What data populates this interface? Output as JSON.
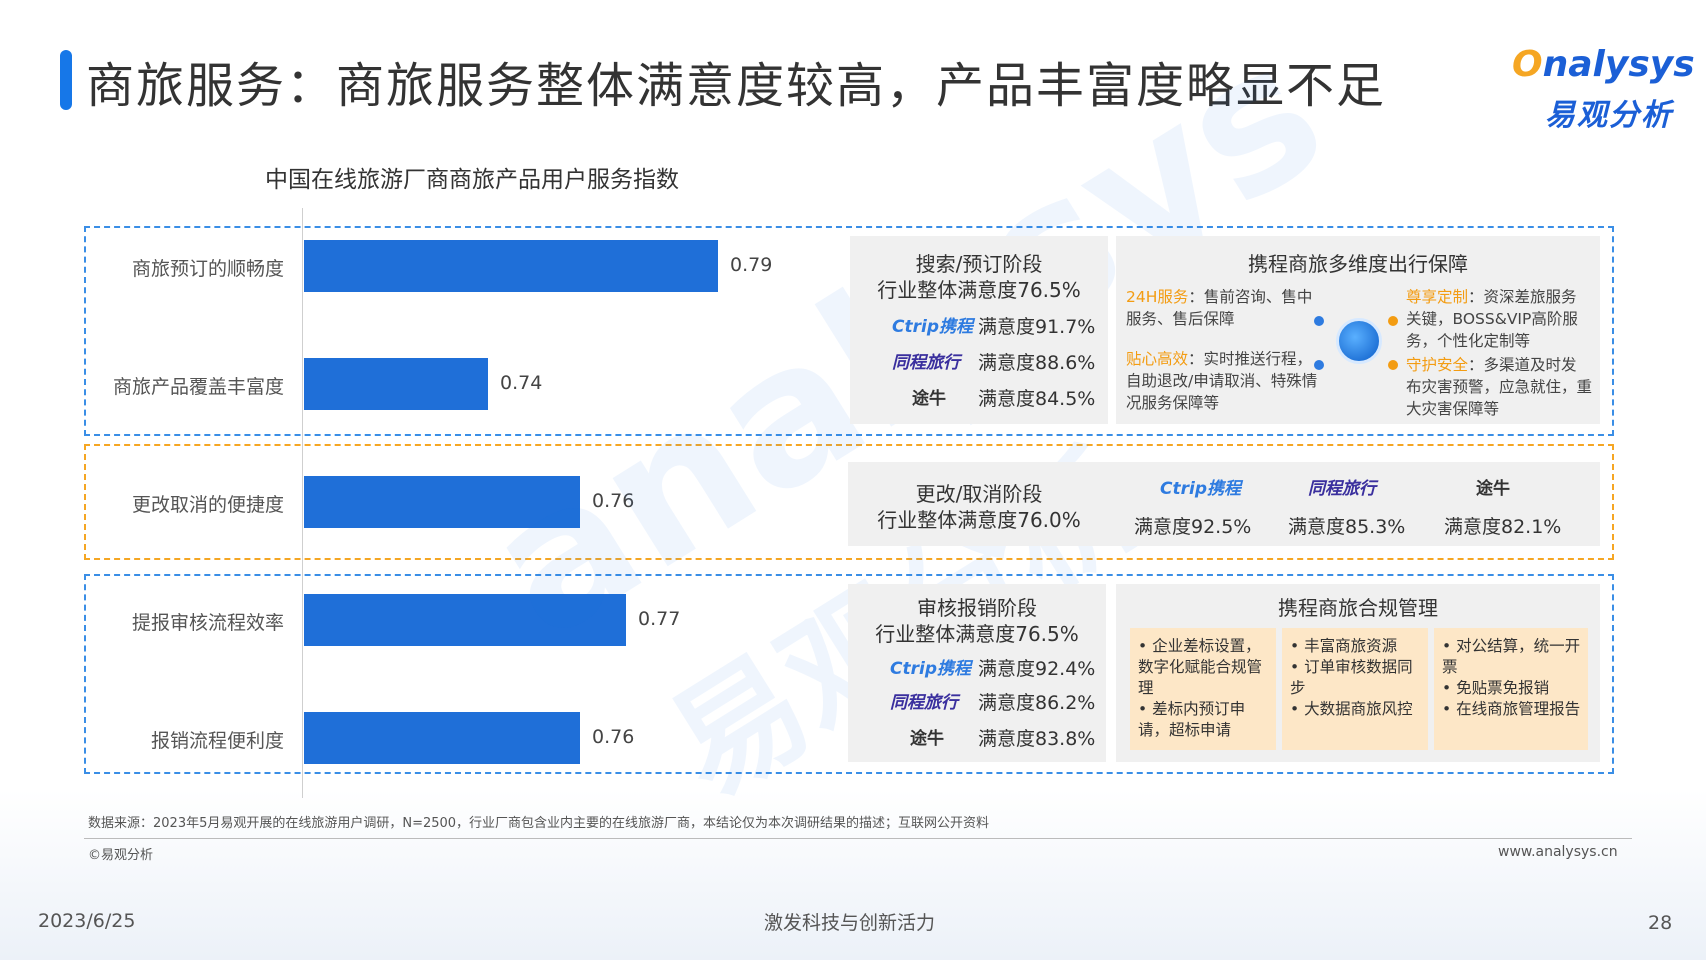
{
  "header": {
    "title": "商旅服务：商旅服务整体满意度较高，产品丰富度略显不足",
    "logo_en_o": "O",
    "logo_en_rest": "nalysys",
    "logo_cn": "易观分析"
  },
  "watermark": {
    "en": "analysys",
    "cn": "易观分析"
  },
  "chart_data": {
    "type": "bar",
    "orientation": "horizontal",
    "title": "中国在线旅游厂商商旅产品用户服务指数",
    "categories": [
      "商旅预订的顺畅度",
      "商旅产品覆盖丰富度",
      "更改取消的便捷度",
      "提报审核流程效率",
      "报销流程便利度"
    ],
    "values": [
      0.79,
      0.74,
      0.76,
      0.77,
      0.76
    ],
    "value_labels": [
      "0.79",
      "0.74",
      "0.76",
      "0.77",
      "0.76"
    ],
    "xlabel": "",
    "ylabel": "",
    "xlim": [
      0.7,
      0.8
    ],
    "color": "#1f6fd8"
  },
  "panel_search": {
    "title_1": "搜索/预订阶段",
    "title_2": "行业整体满意度76.5%",
    "rows": [
      {
        "brand": "Ctrip携程",
        "sat": "满意度91.7%"
      },
      {
        "brand": "同程旅行",
        "sat": "满意度88.6%"
      },
      {
        "brand": "途牛",
        "sat": "满意度84.5%"
      }
    ]
  },
  "panel_guarantee": {
    "title": "携程商旅多维度出行保障",
    "items": [
      {
        "label": "24H服务",
        "text": "：售前咨询、售中服务、售后保障"
      },
      {
        "label": "贴心高效",
        "text": "：实时推送行程，自助退改/申请取消、特殊情况服务保障等"
      },
      {
        "label": "尊享定制",
        "text": "：资深差旅服务关键，BOSS&VIP高阶服务，个性化定制等"
      },
      {
        "label": "守护安全",
        "text": "：多渠道及时发布灾害预警，应急就住，重大灾害保障等"
      }
    ]
  },
  "panel_change": {
    "title_1": "更改/取消阶段",
    "title_2": "行业整体满意度76.0%",
    "rows": [
      {
        "brand": "Ctrip携程",
        "sat": "满意度92.5%"
      },
      {
        "brand": "同程旅行",
        "sat": "满意度85.3%"
      },
      {
        "brand": "途牛",
        "sat": "满意度82.1%"
      }
    ]
  },
  "panel_review": {
    "title_1": "审核报销阶段",
    "title_2": "行业整体满意度76.5%",
    "rows": [
      {
        "brand": "Ctrip携程",
        "sat": "满意度92.4%"
      },
      {
        "brand": "同程旅行",
        "sat": "满意度86.2%"
      },
      {
        "brand": "途牛",
        "sat": "满意度83.8%"
      }
    ]
  },
  "panel_compliance": {
    "title": "携程商旅合规管理",
    "col1": [
      "企业差标设置，数字化赋能合规管理",
      "差标内预订申请，超标申请"
    ],
    "col2": [
      "丰富商旅资源",
      "订单审核数据同步",
      "大数据商旅风控"
    ],
    "col3": [
      "对公结算，统一开票",
      "免贴票免报销",
      "在线商旅管理报告"
    ]
  },
  "footer": {
    "source": "数据来源：2023年5月易观开展的在线旅游用户调研，N=2500，行业厂商包含业内主要的在线旅游厂商，本结论仅为本次调研结果的描述；互联网公开资料",
    "copyright": "©易观分析",
    "website": "www.analysys.cn",
    "date": "2023/6/25",
    "slogan": "激发科技与创新活力",
    "page": "28"
  }
}
